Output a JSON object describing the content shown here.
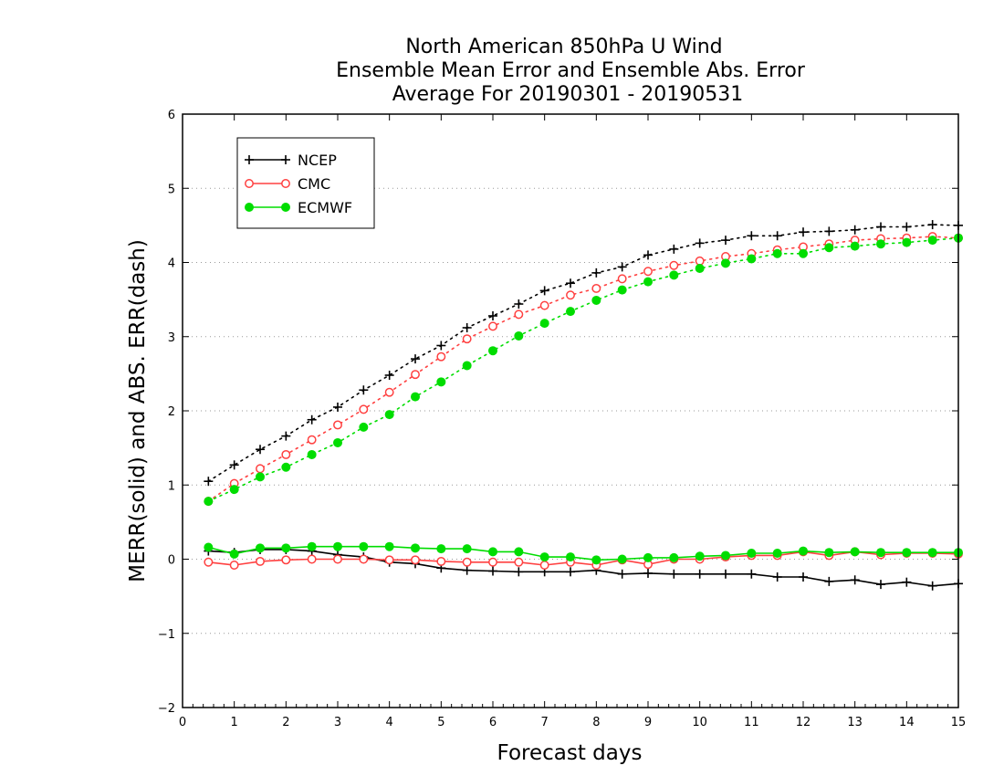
{
  "chart_data": {
    "type": "line",
    "title_lines": [
      "North American 850hPa U Wind",
      "Ensemble Mean Error and Ensemble Abs. Error",
      "Average For 20190301 - 20190531"
    ],
    "xlabel": "Forecast days",
    "ylabel": "MERR(solid) and ABS. ERR(dash)",
    "xlim": [
      0,
      15
    ],
    "ylim": [
      -2,
      6
    ],
    "x_ticks": [
      "0",
      "1",
      "2",
      "3",
      "4",
      "5",
      "6",
      "7",
      "8",
      "9",
      "10",
      "11",
      "12",
      "13",
      "14",
      "15"
    ],
    "y_ticks": [
      "−2",
      "−1",
      "0",
      "1",
      "2",
      "3",
      "4",
      "5",
      "6"
    ],
    "grid": "horizontal dotted",
    "legend_position": "top-left",
    "x": [
      0.5,
      1,
      1.5,
      2,
      2.5,
      3,
      3.5,
      4,
      4.5,
      5,
      5.5,
      6,
      6.5,
      7,
      7.5,
      8,
      8.5,
      9,
      9.5,
      10,
      10.5,
      11,
      11.5,
      12,
      12.5,
      13,
      13.5,
      14,
      14.5,
      15
    ],
    "series": [
      {
        "name": "NCEP",
        "color": "#000000",
        "marker": "plus",
        "abs_err": [
          1.05,
          1.27,
          1.48,
          1.66,
          1.88,
          2.05,
          2.28,
          2.48,
          2.7,
          2.88,
          3.12,
          3.28,
          3.44,
          3.62,
          3.72,
          3.86,
          3.94,
          4.1,
          4.18,
          4.26,
          4.3,
          4.36,
          4.36,
          4.41,
          4.42,
          4.44,
          4.48,
          4.48,
          4.51,
          4.5
        ],
        "mean_err": [
          0.11,
          0.09,
          0.13,
          0.13,
          0.11,
          0.06,
          0.03,
          -0.04,
          -0.06,
          -0.12,
          -0.15,
          -0.16,
          -0.17,
          -0.17,
          -0.17,
          -0.15,
          -0.2,
          -0.19,
          -0.2,
          -0.2,
          -0.2,
          -0.2,
          -0.24,
          -0.24,
          -0.3,
          -0.28,
          -0.34,
          -0.31,
          -0.36,
          -0.33
        ]
      },
      {
        "name": "CMC",
        "color": "#ff4040",
        "marker": "open-circle",
        "abs_err": [
          0.78,
          1.02,
          1.22,
          1.41,
          1.61,
          1.81,
          2.02,
          2.25,
          2.49,
          2.73,
          2.97,
          3.14,
          3.3,
          3.42,
          3.56,
          3.65,
          3.78,
          3.88,
          3.96,
          4.02,
          4.08,
          4.12,
          4.17,
          4.21,
          4.25,
          4.3,
          4.32,
          4.33,
          4.35,
          4.33
        ],
        "mean_err": [
          -0.04,
          -0.08,
          -0.03,
          -0.01,
          0.0,
          0.0,
          0.0,
          -0.01,
          -0.01,
          -0.03,
          -0.04,
          -0.04,
          -0.04,
          -0.08,
          -0.04,
          -0.08,
          -0.01,
          -0.07,
          0.0,
          0.0,
          0.03,
          0.05,
          0.05,
          0.1,
          0.05,
          0.1,
          0.06,
          0.08,
          0.08,
          0.07
        ]
      },
      {
        "name": "ECMWF",
        "color": "#00dd00",
        "marker": "filled-circle",
        "abs_err": [
          0.78,
          0.94,
          1.11,
          1.24,
          1.41,
          1.57,
          1.78,
          1.95,
          2.19,
          2.39,
          2.61,
          2.81,
          3.01,
          3.18,
          3.34,
          3.49,
          3.63,
          3.74,
          3.83,
          3.92,
          3.99,
          4.05,
          4.12,
          4.12,
          4.2,
          4.22,
          4.25,
          4.27,
          4.3,
          4.33
        ],
        "mean_err": [
          0.16,
          0.07,
          0.15,
          0.15,
          0.17,
          0.17,
          0.17,
          0.17,
          0.15,
          0.14,
          0.14,
          0.1,
          0.1,
          0.03,
          0.03,
          -0.01,
          0.0,
          0.02,
          0.02,
          0.04,
          0.05,
          0.08,
          0.08,
          0.11,
          0.09,
          0.1,
          0.09,
          0.09,
          0.09,
          0.09
        ]
      }
    ]
  }
}
